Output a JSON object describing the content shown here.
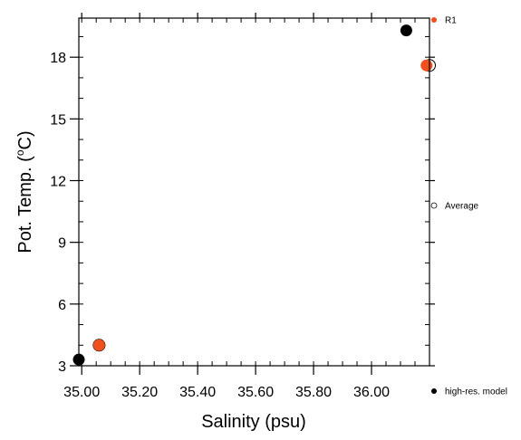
{
  "chart_data": {
    "type": "scatter",
    "xlabel": "Salinity (psu)",
    "ylabel_main": "Pot. Temp. (",
    "ylabel_unit": "o",
    "ylabel_suffix": "C)",
    "xlim": [
      34.99,
      36.2
    ],
    "ylim": [
      3.0,
      19.9
    ],
    "x_ticks": [
      35.0,
      35.2,
      35.4,
      35.6,
      35.8,
      36.0
    ],
    "x_tick_labels": [
      "35.00",
      "35.20",
      "35.40",
      "35.60",
      "35.80",
      "36.00"
    ],
    "y_ticks": [
      3,
      6,
      9,
      12,
      15,
      18
    ],
    "y_tick_labels": [
      "3",
      "6",
      "9",
      "12",
      "15",
      "18"
    ],
    "x_minor_step": 0.05,
    "y_minor_step": 1,
    "grid": false,
    "legend_position": "right",
    "series": [
      {
        "name": "R1",
        "color": "#f0501e",
        "marker": "filled-circle",
        "x": [
          35.06,
          36.19
        ],
        "y": [
          4.0,
          17.6
        ]
      },
      {
        "name": "Average",
        "color": "#000000",
        "marker": "open-circle",
        "x": [
          35.06,
          36.2
        ],
        "y": [
          4.0,
          17.6
        ]
      },
      {
        "name": "high-res. model",
        "color": "#000000",
        "marker": "filled-circle",
        "x": [
          34.99,
          36.12
        ],
        "y": [
          3.3,
          19.3
        ]
      }
    ],
    "legend": [
      {
        "label": "R1",
        "color": "#f0501e",
        "marker": "filled-circle"
      },
      {
        "label": "Average",
        "color": "#000000",
        "marker": "open-circle"
      },
      {
        "label": "high-res. model",
        "color": "#000000",
        "marker": "filled-circle"
      }
    ]
  }
}
